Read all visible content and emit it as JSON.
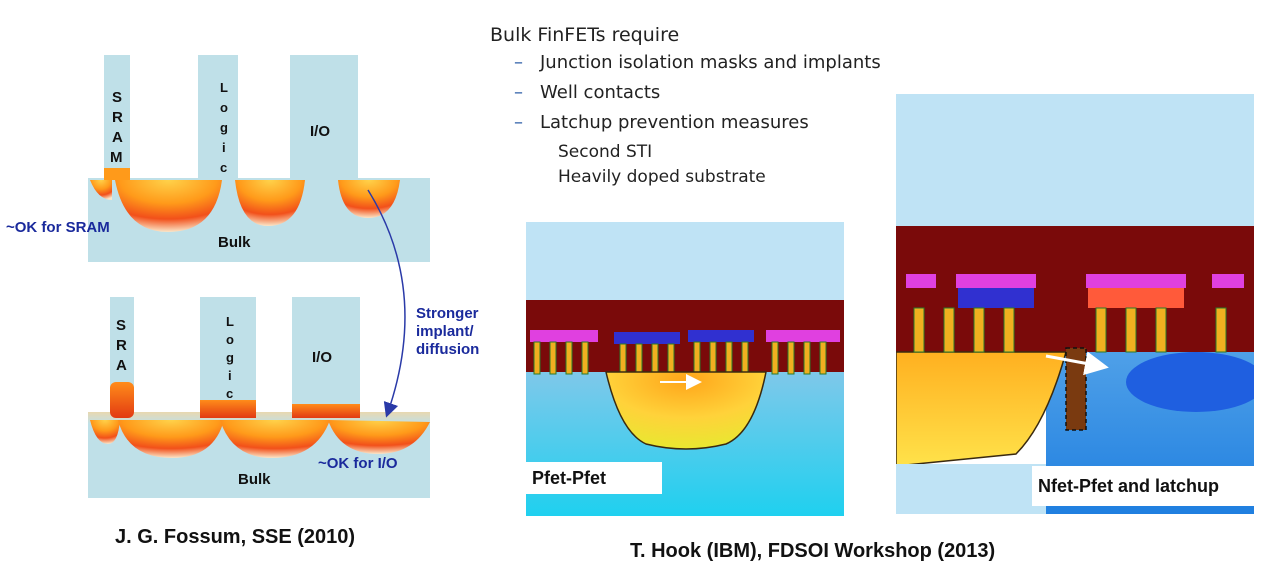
{
  "left_figure": {
    "top": {
      "fin_labels": [
        "S R A M",
        "L o g i c",
        "I/O"
      ],
      "bulk_label": "Bulk",
      "note": "~OK for SRAM"
    },
    "bottom": {
      "fin_labels": [
        "S R A",
        "L o g i c",
        "I/O"
      ],
      "bulk_label": "Bulk",
      "note": "~OK for I/O"
    },
    "arrow_label_lines": [
      "Stronger",
      "implant/",
      "diffusion"
    ],
    "caption": "J. G. Fossum, SSE (2010)"
  },
  "bullets": {
    "title": "Bulk FinFETs require",
    "items": [
      "Junction isolation masks and implants",
      "Well contacts",
      "Latchup prevention measures"
    ],
    "sub_items": [
      "Second STI",
      "Heavily doped substrate"
    ]
  },
  "middle_figure": {
    "label": "Pfet-Pfet"
  },
  "right_figure": {
    "label": "Nfet-Pfet and latchup"
  },
  "right_caption": "T. Hook (IBM), FDSOI Workshop (2013)",
  "colors": {
    "bulk": "#bfe0e8",
    "oxide": "#7a0a0a",
    "sky": "#bfe3f5",
    "text_blue": "#1a2a9c",
    "accent_dash": "#2f5fa8"
  }
}
